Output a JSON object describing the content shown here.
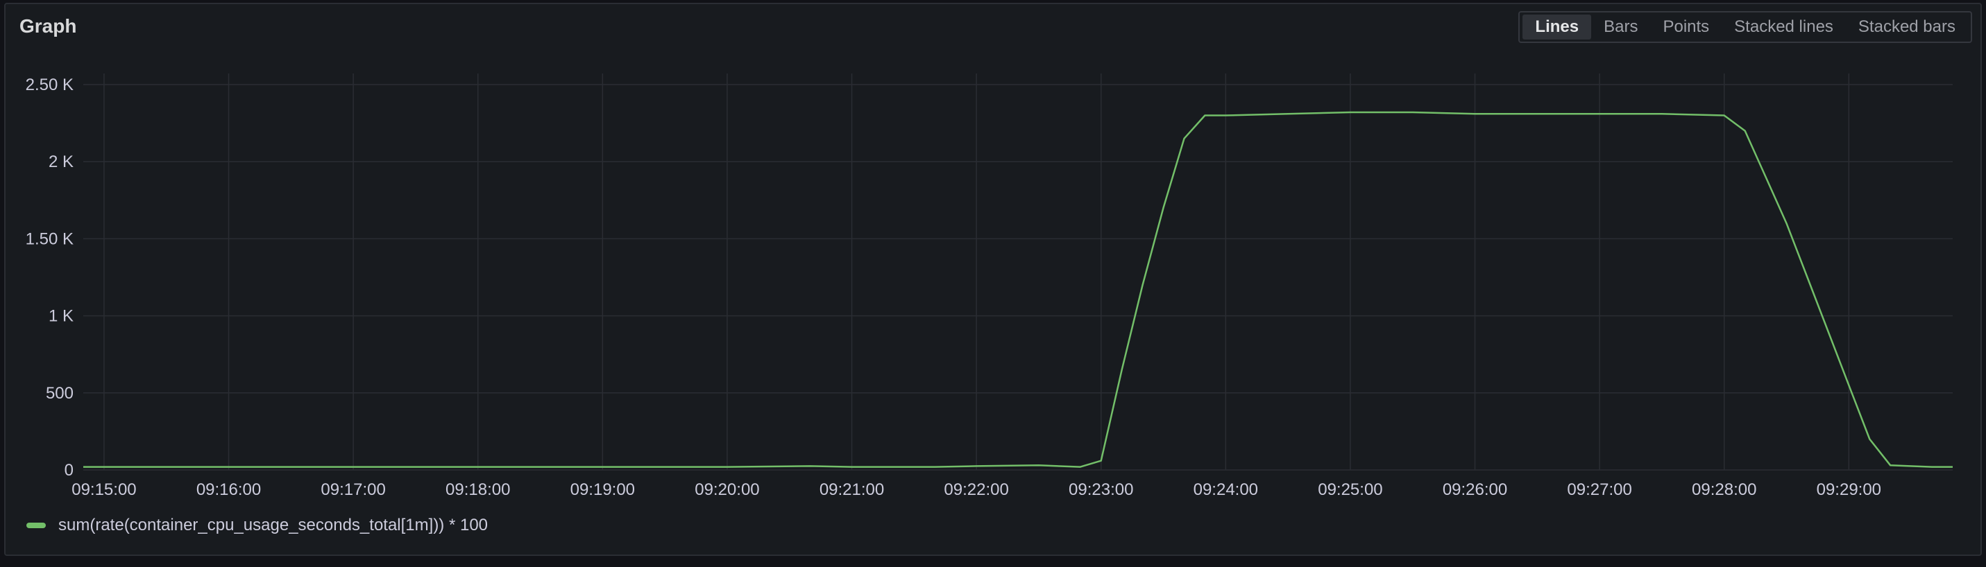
{
  "panel": {
    "title": "Graph"
  },
  "modes": [
    {
      "label": "Lines",
      "active": true
    },
    {
      "label": "Bars",
      "active": false
    },
    {
      "label": "Points",
      "active": false
    },
    {
      "label": "Stacked lines",
      "active": false
    },
    {
      "label": "Stacked bars",
      "active": false
    }
  ],
  "colors": {
    "series": "#73bf69",
    "grid": "#2a2d33",
    "text": "#ccccdc"
  },
  "chart_data": {
    "type": "line",
    "title": "",
    "xlabel": "",
    "ylabel": "",
    "x_ticks": [
      "09:15:00",
      "09:16:00",
      "09:17:00",
      "09:18:00",
      "09:19:00",
      "09:20:00",
      "09:21:00",
      "09:22:00",
      "09:23:00",
      "09:24:00",
      "09:25:00",
      "09:26:00",
      "09:27:00",
      "09:28:00",
      "09:29:00"
    ],
    "xlim": [
      "09:14:50",
      "09:29:50"
    ],
    "y_ticks": [
      {
        "value": 0,
        "label": "0"
      },
      {
        "value": 500,
        "label": "500"
      },
      {
        "value": 1000,
        "label": "1 K"
      },
      {
        "value": 1500,
        "label": "1.50 K"
      },
      {
        "value": 2000,
        "label": "2 K"
      },
      {
        "value": 2500,
        "label": "2.50 K"
      }
    ],
    "ylim": [
      0,
      2500
    ],
    "grid": true,
    "legend_position": "bottom-left",
    "series": [
      {
        "name": "sum(rate(container_cpu_usage_seconds_total[1m])) * 100",
        "x": [
          "09:14:50",
          "09:16:00",
          "09:18:00",
          "09:20:00",
          "09:20:40",
          "09:21:00",
          "09:21:40",
          "09:22:00",
          "09:22:30",
          "09:22:50",
          "09:23:00",
          "09:23:10",
          "09:23:20",
          "09:23:30",
          "09:23:40",
          "09:23:50",
          "09:24:00",
          "09:24:30",
          "09:25:00",
          "09:25:30",
          "09:26:00",
          "09:26:30",
          "09:27:00",
          "09:27:30",
          "09:28:00",
          "09:28:10",
          "09:28:20",
          "09:28:30",
          "09:28:40",
          "09:28:50",
          "09:29:00",
          "09:29:10",
          "09:29:20",
          "09:29:40",
          "09:29:50"
        ],
        "y": [
          20,
          20,
          20,
          20,
          25,
          20,
          20,
          25,
          30,
          20,
          60,
          650,
          1200,
          1700,
          2150,
          2300,
          2300,
          2310,
          2320,
          2320,
          2310,
          2310,
          2310,
          2310,
          2300,
          2200,
          1900,
          1600,
          1250,
          900,
          550,
          200,
          30,
          20,
          20
        ]
      }
    ]
  }
}
